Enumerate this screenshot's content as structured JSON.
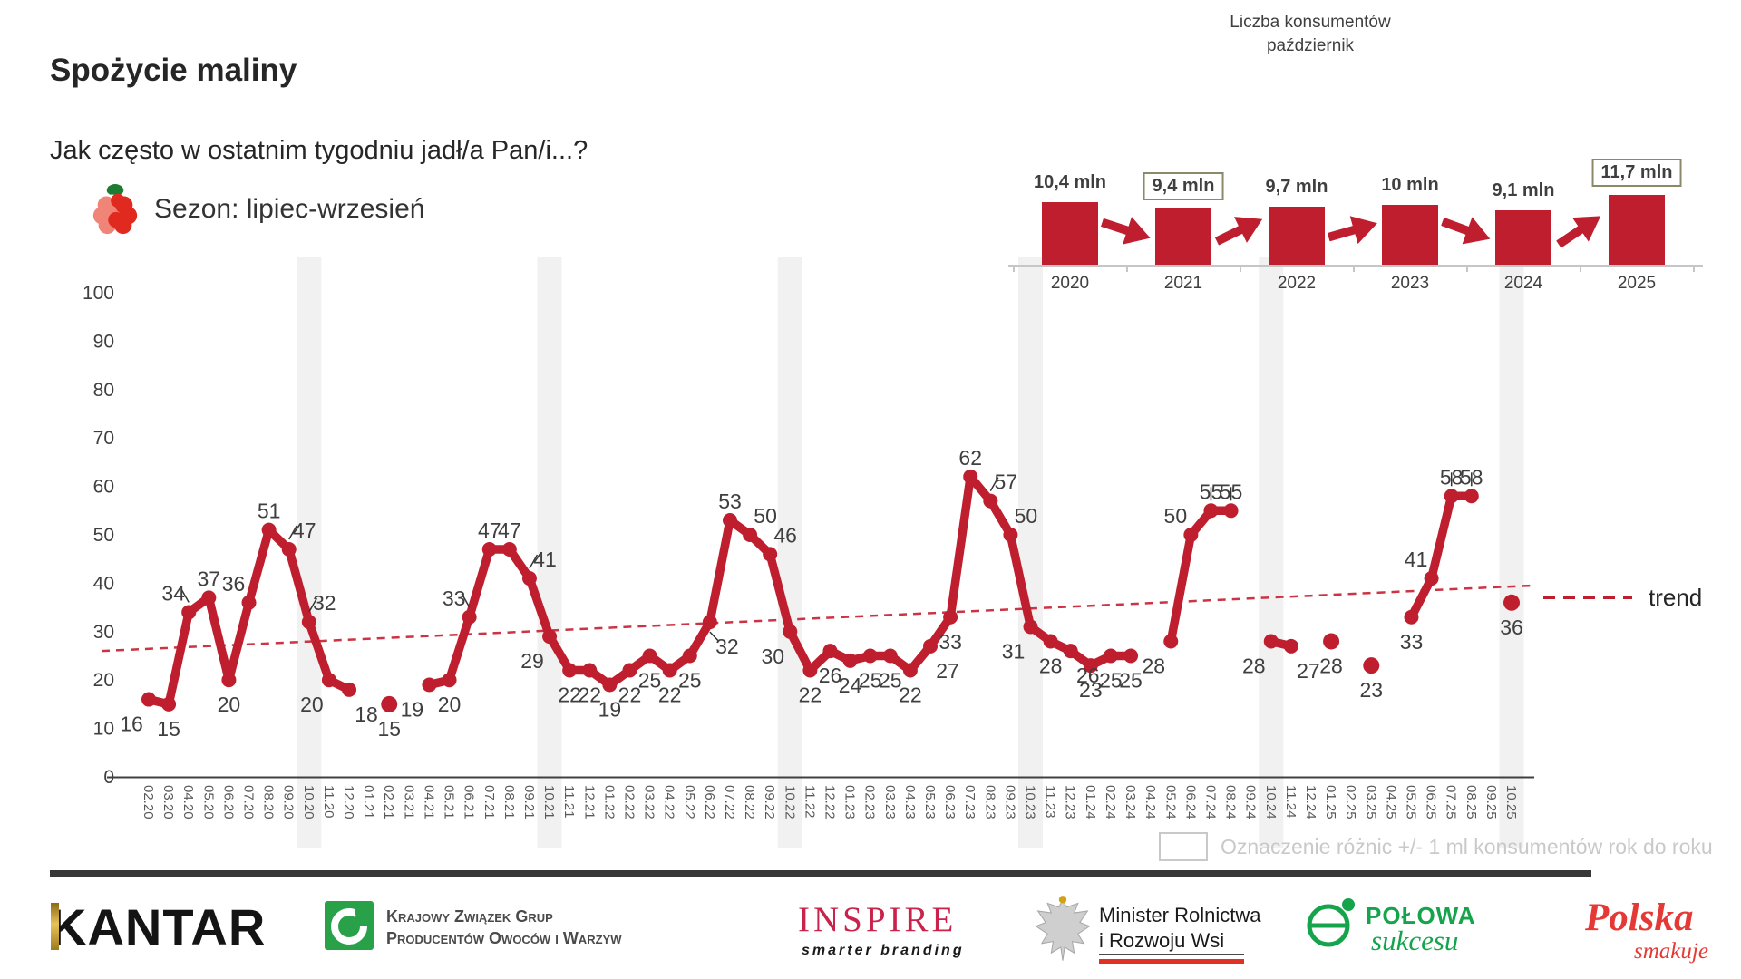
{
  "header": {
    "title": "Spożycie maliny",
    "subtitle": "Jak często w ostatnim tygodniu jadł/a Pan/i...?",
    "season_label": "Sezon: lipiec-wrzesień"
  },
  "consumers_chart": {
    "title_line1": "Liczba konsumentów",
    "title_line2": "październik"
  },
  "bottom_legend": {
    "text": "Oznaczenie różnic +/- 1 ml konsumentów rok do roku"
  },
  "footer": {
    "kantar": "KANTAR",
    "kzg_line1": "Krajowy Związek Grup",
    "kzg_line2": "Producentów Owoców i Warzyw",
    "inspire": "INSPIRE",
    "inspire_sub": "smarter branding",
    "ministry_line1": "Minister Rolnictwa",
    "ministry_line2": "i Rozwoju Wsi",
    "polowa_line1": "POŁOWA",
    "polowa_line2": "sukcesu",
    "polska_line1": "Polska",
    "polska_line2": "smakuje"
  },
  "chart_data": [
    {
      "type": "line",
      "title": "Spożycie maliny",
      "xlabel": "",
      "ylabel": "",
      "ylim": [
        0,
        100
      ],
      "y_ticks": [
        0,
        10,
        20,
        30,
        40,
        50,
        60,
        70,
        80,
        90,
        100
      ],
      "grid": false,
      "x": [
        "02.20",
        "03.20",
        "04.20",
        "05.20",
        "06.20",
        "07.20",
        "08.20",
        "09.20",
        "10.20",
        "11.20",
        "12.20",
        "01.21",
        "02.21",
        "03.21",
        "04.21",
        "05.21",
        "06.21",
        "07.21",
        "08.21",
        "09.21",
        "10.21",
        "11.21",
        "12.21",
        "01.22",
        "02.22",
        "03.22",
        "04.22",
        "05.22",
        "06.22",
        "07.22",
        "08.22",
        "09.22",
        "10.22",
        "11.22",
        "12.22",
        "01.23",
        "02.23",
        "03.23",
        "04.23",
        "05.23",
        "06.23",
        "07.23",
        "08.23",
        "09.23",
        "10.23",
        "11.23",
        "12.23",
        "01.24",
        "02.24",
        "03.24",
        "04.24",
        "05.24",
        "06.24",
        "07.24",
        "08.24",
        "09.24",
        "10.24",
        "11.24",
        "12.24",
        "01.25",
        "02.25",
        "03.25",
        "04.25",
        "05.25",
        "06.25",
        "07.25",
        "08.25",
        "09.25",
        "10.25"
      ],
      "values": [
        16,
        15,
        34,
        37,
        20,
        36,
        51,
        47,
        32,
        20,
        18,
        null,
        15,
        null,
        19,
        20,
        33,
        47,
        47,
        41,
        29,
        22,
        22,
        19,
        22,
        25,
        22,
        25,
        32,
        53,
        50,
        46,
        30,
        22,
        26,
        24,
        25,
        25,
        22,
        27,
        33,
        62,
        57,
        50,
        31,
        28,
        26,
        23,
        25,
        25,
        null,
        28,
        50,
        55,
        55,
        null,
        28,
        27,
        null,
        28,
        null,
        23,
        null,
        33,
        41,
        58,
        58,
        null,
        36
      ],
      "label_placement": [
        "bl",
        "b",
        "alL",
        "a",
        "b",
        "al",
        "a",
        "arL",
        "arL",
        "bl",
        "br",
        "",
        "b",
        "",
        "bl",
        "b",
        "alL",
        "a",
        "a",
        "arL",
        "bl",
        "b",
        "b",
        "b",
        "b",
        "b",
        "b",
        "b",
        "brL",
        "a",
        "ar",
        "ar",
        "bl",
        "b",
        "b",
        "b",
        "b",
        "b",
        "b",
        "br",
        "b",
        "a",
        "arL",
        "ar",
        "bl",
        "b",
        "br",
        "b",
        "b",
        "b",
        "",
        "bl",
        "al",
        "aL",
        "aL",
        "",
        "bl",
        "br",
        "",
        "b",
        "",
        "b",
        "",
        "b",
        "al",
        "aL",
        "aL",
        "",
        "b"
      ],
      "stripe_months": [
        "10.20",
        "10.21",
        "10.22",
        "10.23",
        "10.24",
        "10.25"
      ],
      "trend": {
        "label": "trend",
        "start_value": 26,
        "end_value": 39.5
      },
      "legend_position": "right",
      "colors": {
        "line": "#bf1e2e",
        "trend": "#cc3344",
        "stripe": "#f1f1f1",
        "value_label": "#3f3f3f",
        "axis_label": "#595959",
        "axis_line": "#404040"
      }
    },
    {
      "type": "bar",
      "title": "Liczba konsumentów październik",
      "categories": [
        "2020",
        "2021",
        "2022",
        "2023",
        "2024",
        "2025"
      ],
      "values": [
        10.4,
        9.4,
        9.7,
        10,
        9.1,
        11.7
      ],
      "labels": [
        "10,4 mln",
        "9,4 mln",
        "9,7 mln",
        "10 mln",
        "9,1 mln",
        "11,7 mln"
      ],
      "boxed": [
        false,
        true,
        false,
        false,
        false,
        true
      ],
      "bar_color": "#bf1e2e"
    }
  ]
}
